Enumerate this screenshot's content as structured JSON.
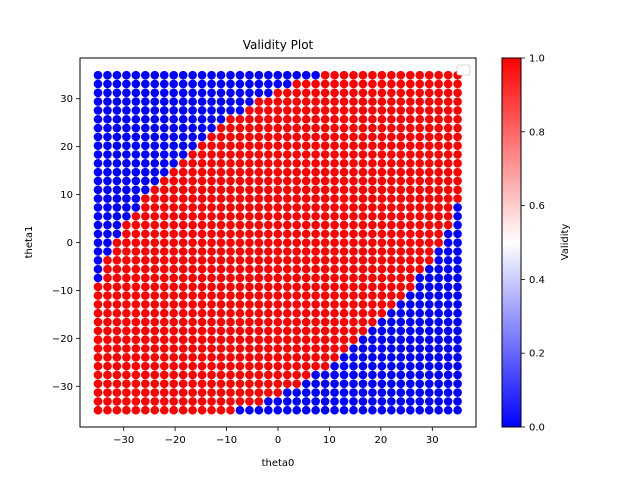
{
  "chart_data": {
    "type": "scatter",
    "title": "Validity Plot",
    "xlabel": "theta0",
    "ylabel": "theta1",
    "xlim": [
      -38.5,
      38.5
    ],
    "ylim": [
      -38.5,
      38.5
    ],
    "x_ticks": [
      -30,
      -20,
      -10,
      0,
      10,
      20,
      30
    ],
    "y_ticks": [
      -30,
      -20,
      -10,
      0,
      10,
      20,
      30
    ],
    "grid": false,
    "legend": "top-right (empty)",
    "grid_points": {
      "start": -35,
      "end": 35,
      "step": 1.84,
      "count": 39
    },
    "region": {
      "description": "points inside ellipse are valid (1.0, red); outside are invalid (0.0, blue); corners near (30,30) and (-30,-30) also valid",
      "center": [
        0,
        0
      ],
      "angle_deg": 45,
      "semi_major": 45,
      "semi_minor": 26
    },
    "colorbar": {
      "label": "Validity",
      "min": 0.0,
      "max": 1.0,
      "ticks": [
        0.0,
        0.2,
        0.4,
        0.6,
        0.8,
        1.0
      ],
      "tick_labels": [
        "0.0",
        "0.2",
        "0.4",
        "0.6",
        "0.8",
        "1.0"
      ],
      "colors": {
        "low": "#0000ff",
        "mid": "#ffffff",
        "high": "#ff0000"
      }
    },
    "colors": {
      "valid": "#ff0000",
      "invalid": "#0000ff"
    }
  }
}
